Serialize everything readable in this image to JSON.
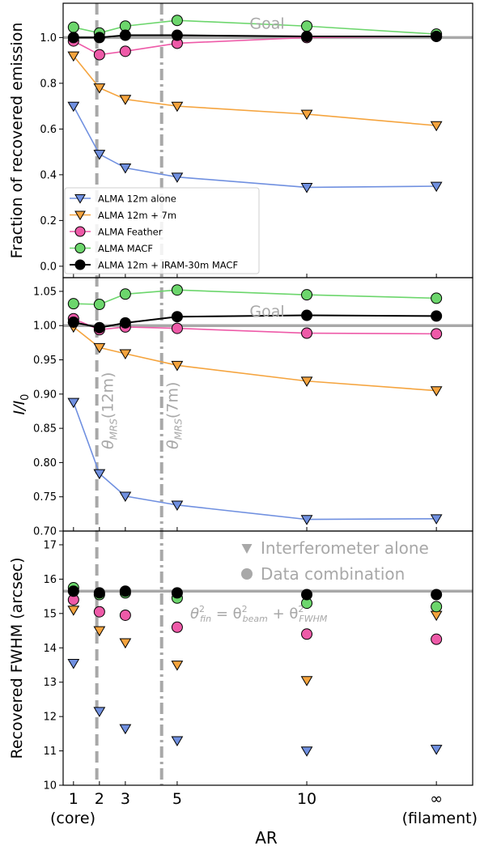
{
  "chart_data": {
    "type": "line",
    "x_label": "AR",
    "x_ticks": [
      {
        "x": 1,
        "label": "1",
        "sub": "(core)"
      },
      {
        "x": 2,
        "label": "2",
        "sub": ""
      },
      {
        "x": 3,
        "label": "3",
        "sub": ""
      },
      {
        "x": 5,
        "label": "5",
        "sub": ""
      },
      {
        "x": 10,
        "label": "10",
        "sub": ""
      },
      {
        "x": 15,
        "label": "∞",
        "sub": "(filament)"
      }
    ],
    "x_range": [
      0.6,
      16.4
    ],
    "vlines": [
      {
        "x": 1.9,
        "style": "dashed",
        "label": "θMRS(12m)"
      },
      {
        "x": 4.4,
        "style": "dashdot",
        "label": "θMRS(7m)"
      }
    ],
    "colors": {
      "alma12m": "#7090e0",
      "alma12m7m": "#f5a43e",
      "feather": "#ee5aa8",
      "macf": "#6cd66c",
      "iram": "#000000",
      "goal": "#a8a8a8"
    },
    "series_meta": [
      {
        "key": "alma12m",
        "name": "ALMA 12m alone",
        "marker": "tri"
      },
      {
        "key": "alma12m7m",
        "name": "ALMA 12m + 7m",
        "marker": "tri"
      },
      {
        "key": "feather",
        "name": "ALMA Feather",
        "marker": "circle"
      },
      {
        "key": "macf",
        "name": "ALMA MACF",
        "marker": "circle"
      },
      {
        "key": "iram",
        "name": "ALMA 12m + IRAM-30m MACF",
        "marker": "circle"
      }
    ],
    "panels": [
      {
        "ylabel": "Fraction of recovered emission",
        "ylim": [
          -0.05,
          1.15
        ],
        "yticks": [
          0.0,
          0.2,
          0.4,
          0.6,
          0.8,
          1.0
        ],
        "tick_labels": [
          "0.0",
          "0.2",
          "0.4",
          "0.6",
          "0.8",
          "1.0"
        ],
        "goal": 1.0,
        "goal_label": "Goal",
        "connect": true,
        "legend": "lower-left",
        "series": {
          "alma12m": [
            0.7,
            0.49,
            0.43,
            0.39,
            0.345,
            0.35
          ],
          "alma12m7m": [
            0.92,
            0.78,
            0.73,
            0.7,
            0.665,
            0.615
          ],
          "feather": [
            0.985,
            0.925,
            0.94,
            0.975,
            1.0,
            1.005
          ],
          "macf": [
            1.045,
            1.02,
            1.05,
            1.075,
            1.05,
            1.015
          ],
          "iram": [
            1.0,
            1.0,
            1.01,
            1.01,
            1.005,
            1.005
          ]
        }
      },
      {
        "ylabel": "I/I0",
        "ylim": [
          0.7,
          1.07
        ],
        "yticks": [
          0.7,
          0.75,
          0.8,
          0.85,
          0.9,
          0.95,
          1.0,
          1.05
        ],
        "tick_labels": [
          "0.70",
          "0.75",
          "0.80",
          "0.85",
          "0.90",
          "0.95",
          "1.00",
          "1.05"
        ],
        "goal": 1.0,
        "goal_label": "Goal",
        "connect": true,
        "series": {
          "alma12m": [
            0.888,
            0.784,
            0.751,
            0.738,
            0.717,
            0.718
          ],
          "alma12m7m": [
            0.998,
            0.968,
            0.959,
            0.942,
            0.919,
            0.905
          ],
          "feather": [
            1.01,
            0.994,
            0.998,
            0.996,
            0.989,
            0.988
          ],
          "macf": [
            1.032,
            1.031,
            1.046,
            1.052,
            1.045,
            1.04
          ],
          "iram": [
            1.005,
            0.997,
            1.004,
            1.013,
            1.015,
            1.014
          ]
        }
      },
      {
        "ylabel": "Recovered FWHM (arcsec)",
        "ylim": [
          10,
          17.4
        ],
        "yticks": [
          10,
          11,
          12,
          13,
          14,
          15,
          16,
          17
        ],
        "tick_labels": [
          "10",
          "11",
          "12",
          "13",
          "14",
          "15",
          "16",
          "17"
        ],
        "goal": 15.65,
        "goal_label": "",
        "connect": false,
        "formula": "θ²fin = θ²beam + θ²FWHM",
        "marker_legend": [
          {
            "marker": "tri",
            "label": "Interferometer alone"
          },
          {
            "marker": "circle",
            "label": "Data combination"
          }
        ],
        "series": {
          "alma12m": [
            13.55,
            12.15,
            11.65,
            11.3,
            11.0,
            11.05
          ],
          "alma12m7m": [
            15.1,
            14.5,
            14.15,
            13.5,
            13.05,
            14.95
          ],
          "feather": [
            15.4,
            15.05,
            14.95,
            14.6,
            14.4,
            14.25
          ],
          "macf": [
            15.75,
            15.55,
            15.6,
            15.45,
            15.3,
            15.2
          ],
          "iram": [
            15.65,
            15.6,
            15.65,
            15.6,
            15.55,
            15.55
          ]
        }
      }
    ]
  }
}
